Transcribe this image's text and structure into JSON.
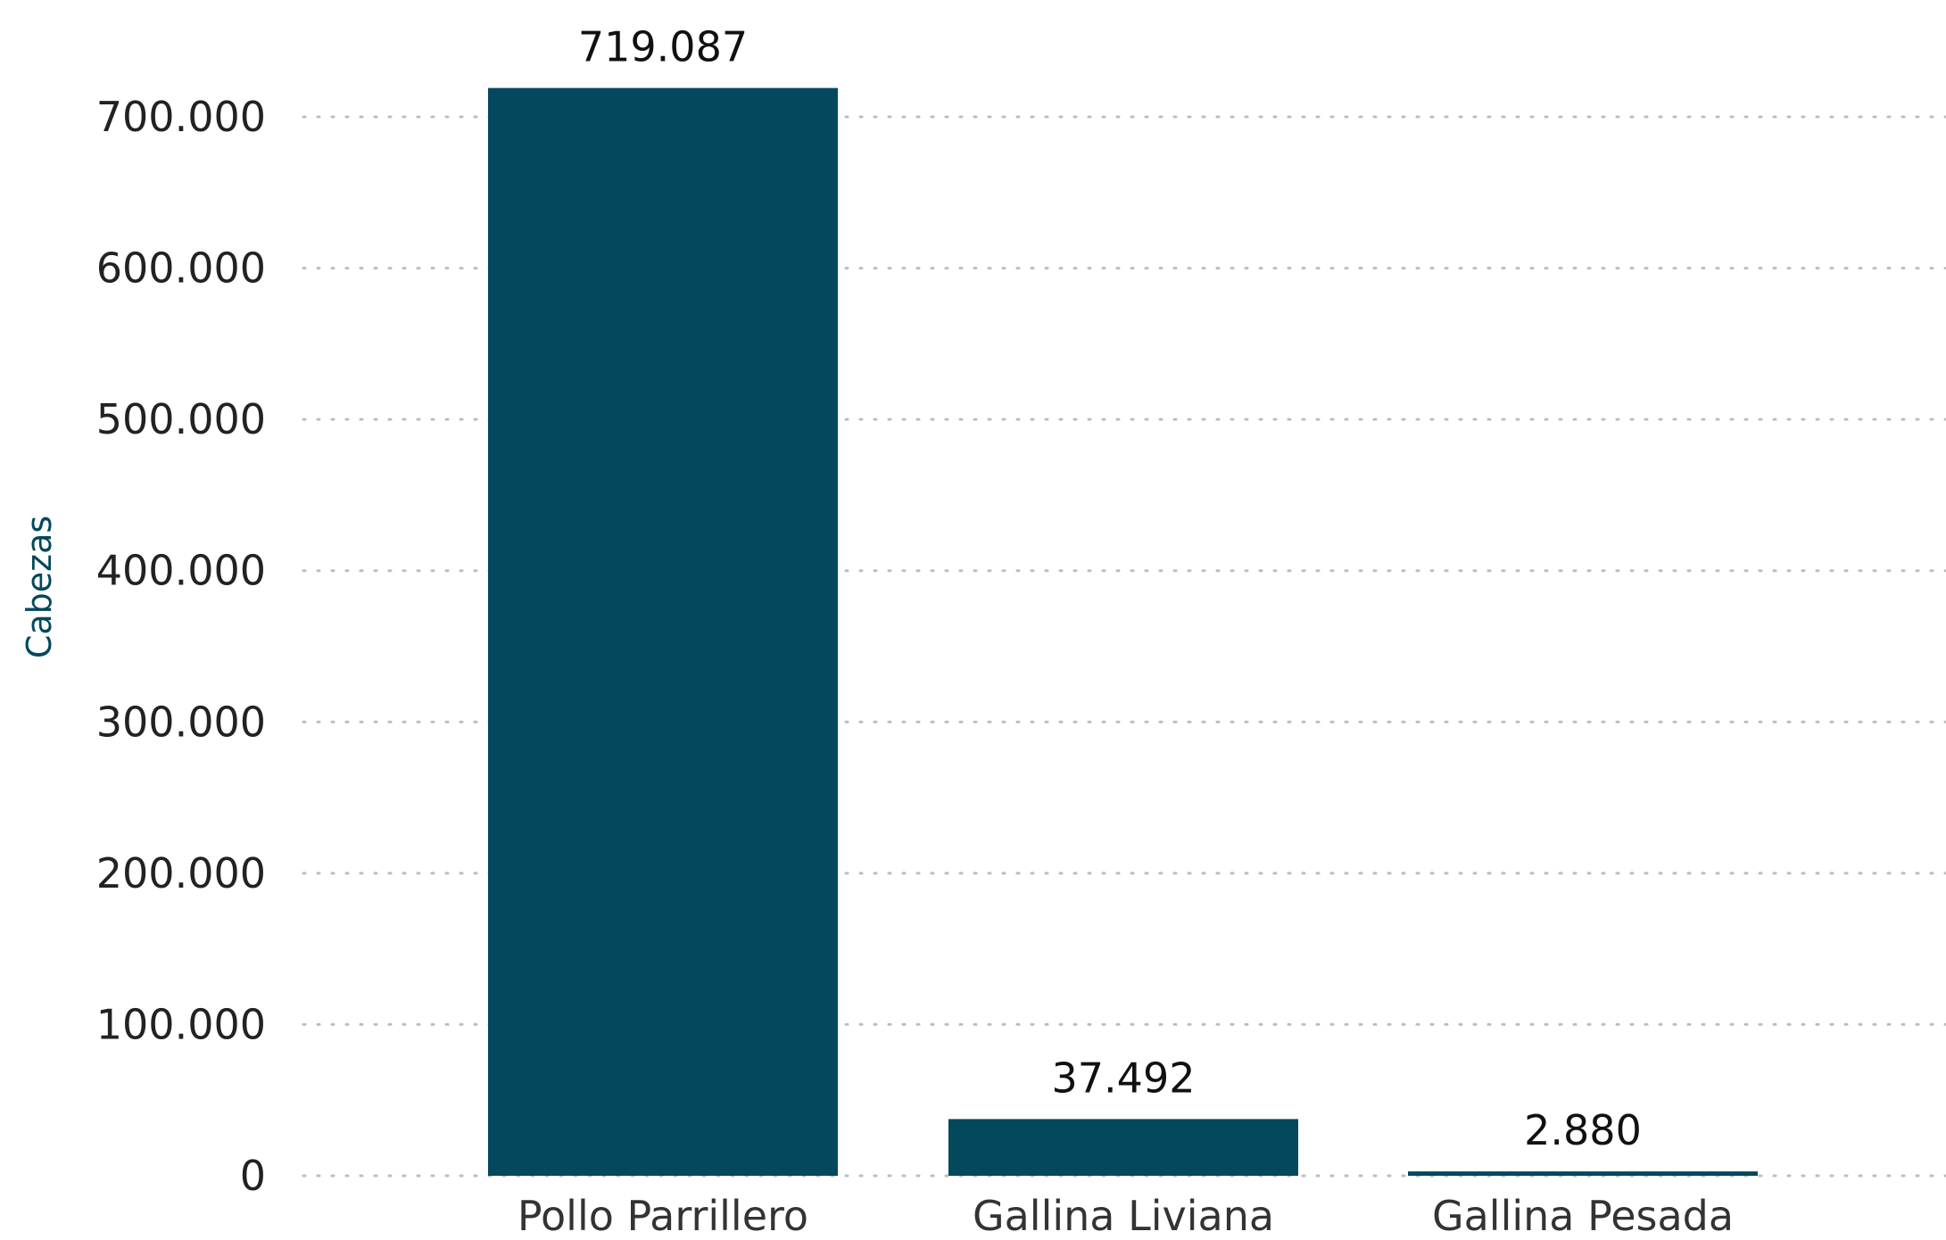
{
  "chart_data": {
    "type": "bar",
    "categories": [
      "Pollo Parrillero",
      "Gallina Liviana",
      "Gallina Pesada"
    ],
    "values": [
      719087,
      37492,
      2880
    ],
    "data_labels": [
      "719.087",
      "37.492",
      "2.880"
    ],
    "ylabel": "Cabezas",
    "xlabel": "",
    "ylim": [
      0,
      700000
    ],
    "yticks": [
      0,
      100000,
      200000,
      300000,
      400000,
      500000,
      600000,
      700000
    ],
    "ytick_labels": [
      "0",
      "100.000",
      "200.000",
      "300.000",
      "400.000",
      "500.000",
      "600.000",
      "700.000"
    ],
    "grid": "horizontal dotted",
    "legend": "none",
    "colors": {
      "bar": "#03485c",
      "ylabel": "#03485c",
      "grid": "#bdbdbd"
    }
  }
}
